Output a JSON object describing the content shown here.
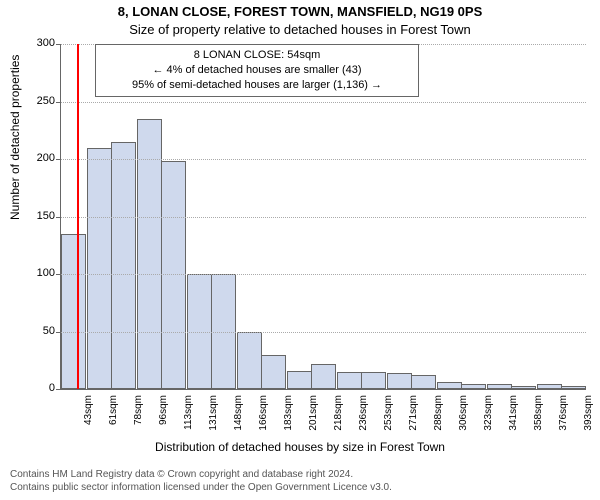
{
  "title_line1": "8, LONAN CLOSE, FOREST TOWN, MANSFIELD, NG19 0PS",
  "title_line2": "Size of property relative to detached houses in Forest Town",
  "info_box": {
    "line1": "8 LONAN CLOSE: 54sqm",
    "line2": "← 4% of detached houses are smaller (43)",
    "line3": "95% of semi-detached houses are larger (1,136) →"
  },
  "chart": {
    "type": "histogram",
    "ylabel": "Number of detached properties",
    "xlabel": "Distribution of detached houses by size in Forest Town",
    "ylim": [
      0,
      300
    ],
    "ytick_step": 50,
    "xtick_sqm": [
      43,
      61,
      78,
      96,
      113,
      131,
      148,
      166,
      183,
      201,
      218,
      236,
      253,
      271,
      288,
      306,
      323,
      341,
      358,
      376,
      393
    ],
    "bar_values": [
      135,
      210,
      215,
      235,
      198,
      100,
      100,
      50,
      30,
      16,
      22,
      15,
      15,
      14,
      12,
      6,
      4,
      4,
      3,
      4,
      3
    ],
    "bar_fill": "#cfd9ed",
    "bar_border": "#666666",
    "marker_sqm": 54,
    "marker_color": "#ff0000",
    "background": "#ffffff",
    "grid_color": "#aaaaaa"
  },
  "footer": {
    "line1": "Contains HM Land Registry data © Crown copyright and database right 2024.",
    "line2": "Contains public sector information licensed under the Open Government Licence v3.0."
  }
}
